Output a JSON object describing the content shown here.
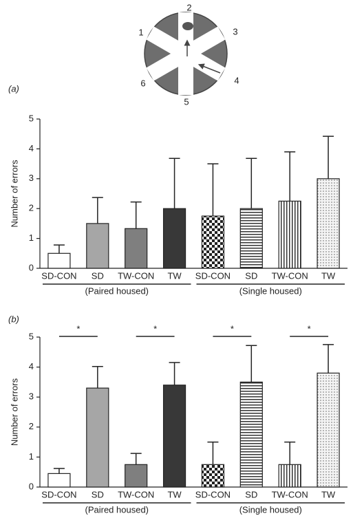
{
  "diagram": {
    "arm_labels": [
      "1",
      "2",
      "3",
      "4",
      "5",
      "6"
    ]
  },
  "chart_data": [
    {
      "type": "bar",
      "panel_label": "(a)",
      "ylabel": "Number of errors",
      "categories": [
        "SD-CON",
        "SD",
        "TW-CON",
        "TW",
        "SD-CON",
        "SD",
        "TW-CON",
        "TW"
      ],
      "values": [
        0.5,
        1.5,
        1.33,
        2.0,
        1.75,
        2.0,
        2.25,
        3.0
      ],
      "errors": [
        0.28,
        0.87,
        0.89,
        1.68,
        1.75,
        1.68,
        1.65,
        1.42
      ],
      "fills": [
        "#ffffff",
        "#a6a6a6",
        "#7f7f7f",
        "#383838",
        "checker",
        "horizontal",
        "vertical",
        "dots"
      ],
      "groups": [
        "(Paired housed)",
        "(Single housed)"
      ],
      "ylim": [
        0,
        5
      ],
      "yticks": [
        0,
        1,
        2,
        3,
        4,
        5
      ]
    },
    {
      "type": "bar",
      "panel_label": "(b)",
      "ylabel": "Number of errors",
      "categories": [
        "SD-CON",
        "SD",
        "TW-CON",
        "TW",
        "SD-CON",
        "SD",
        "TW-CON",
        "TW"
      ],
      "values": [
        0.45,
        3.3,
        0.75,
        3.4,
        0.75,
        3.5,
        0.75,
        3.8
      ],
      "errors": [
        0.17,
        0.72,
        0.37,
        0.75,
        0.75,
        1.22,
        0.75,
        0.95
      ],
      "fills": [
        "#ffffff",
        "#a6a6a6",
        "#7f7f7f",
        "#383838",
        "checker",
        "horizontal",
        "vertical",
        "dots"
      ],
      "groups": [
        "(Paired housed)",
        "(Single housed)"
      ],
      "significance": [
        "*",
        "*",
        "*",
        "*"
      ],
      "ylim": [
        0,
        5
      ],
      "yticks": [
        0,
        1,
        2,
        3,
        4,
        5
      ]
    }
  ]
}
